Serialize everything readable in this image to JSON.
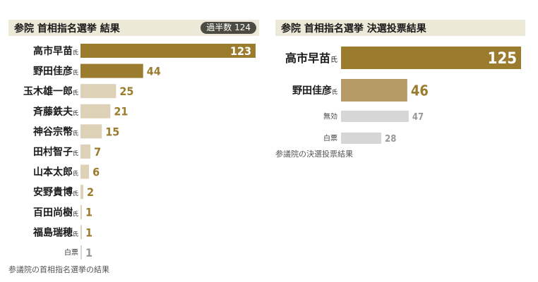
{
  "colors": {
    "top": "#9b7b2e",
    "mid": "#b59a66",
    "low": "#ddd2b7",
    "gray": "#d6d6d6",
    "header_bg": "#ede9d8",
    "label_gray": "#999999"
  },
  "left_panel": {
    "title": "参院 首相指名選挙 結果",
    "majority_label": "過半数 124",
    "caption": "参議院の首相指名選挙の結果"
  },
  "right_panel": {
    "title": "参院 首相指名選挙 決選投票結果",
    "caption": "参議院の決選投票結果"
  },
  "chart_data": [
    {
      "type": "bar",
      "orientation": "horizontal",
      "title": "参院 首相指名選挙 結果",
      "annotation": "過半数 124",
      "categories": [
        "高市早苗",
        "野田佳彦",
        "玉木雄一郎",
        "斉藤鉄夫",
        "神谷宗幣",
        "田村智子",
        "山本太郎",
        "安野貴博",
        "百田尚樹",
        "福島瑞穂",
        "白票"
      ],
      "suffixes": [
        "氏",
        "氏",
        "氏",
        "氏",
        "氏",
        "氏",
        "氏",
        "氏",
        "氏",
        "氏",
        ""
      ],
      "values": [
        123,
        44,
        25,
        21,
        15,
        7,
        6,
        2,
        1,
        1,
        1
      ],
      "value_labels": [
        "123",
        "44",
        "25",
        "21",
        "15",
        "7",
        "6",
        "2",
        "1",
        "1",
        "1"
      ],
      "styles": [
        "top",
        "top",
        "low",
        "low",
        "low",
        "low",
        "low",
        "low",
        "low",
        "low",
        "gray"
      ],
      "xlim": [
        0,
        123
      ],
      "grid": false,
      "legend": "none"
    },
    {
      "type": "bar",
      "orientation": "horizontal",
      "title": "参院 首相指名選挙 決選投票結果",
      "categories": [
        "高市早苗",
        "野田佳彦",
        "無効",
        "白票"
      ],
      "suffixes": [
        "氏",
        "氏",
        "",
        ""
      ],
      "values": [
        125,
        46,
        47,
        28
      ],
      "value_labels": [
        "125",
        "46",
        "47",
        "28"
      ],
      "styles": [
        "top",
        "mid",
        "gray",
        "gray"
      ],
      "xlim": [
        0,
        125
      ],
      "grid": false,
      "legend": "none"
    }
  ]
}
